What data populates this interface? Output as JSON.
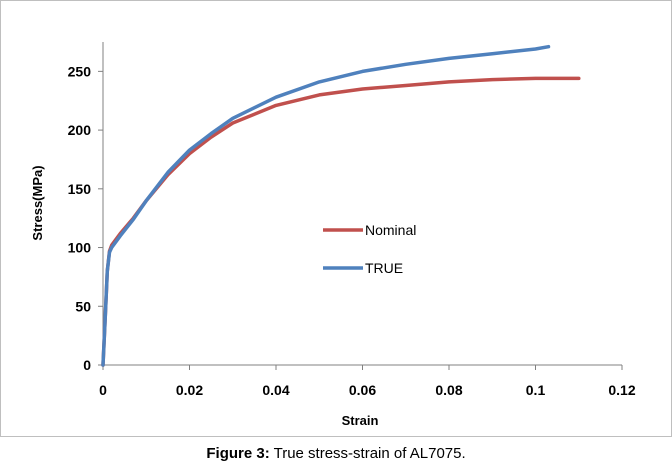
{
  "caption": {
    "label": "Figure 3:",
    "text": " True stress-strain of AL7075."
  },
  "chart_data": {
    "type": "line",
    "xlabel": "Strain",
    "ylabel": "Stress(MPa)",
    "xlim": [
      0,
      0.12
    ],
    "ylim": [
      0,
      275
    ],
    "xticks": [
      0,
      0.02,
      0.04,
      0.06,
      0.08,
      0.1,
      0.12
    ],
    "xtick_labels": [
      "0",
      "0.02",
      "0.04",
      "0.06",
      "0.08",
      "0.1",
      "0.12"
    ],
    "yticks": [
      0,
      50,
      100,
      150,
      200,
      250
    ],
    "ytick_labels": [
      "0",
      "50",
      "100",
      "150",
      "200",
      "250"
    ],
    "grid": false,
    "legend_position": "center-right",
    "series": [
      {
        "name": "Nominal",
        "color": "#c0504d",
        "x": [
          0,
          0.0005,
          0.001,
          0.0015,
          0.002,
          0.004,
          0.007,
          0.01,
          0.015,
          0.02,
          0.025,
          0.03,
          0.04,
          0.05,
          0.06,
          0.07,
          0.08,
          0.09,
          0.1,
          0.11
        ],
        "y": [
          0,
          40,
          80,
          97,
          102,
          112,
          125,
          140,
          162,
          180,
          194,
          206,
          221,
          230,
          235,
          238,
          241,
          243,
          244,
          244
        ]
      },
      {
        "name": "TRUE",
        "color": "#4f81bd",
        "x": [
          0,
          0.0005,
          0.001,
          0.0015,
          0.002,
          0.004,
          0.007,
          0.01,
          0.015,
          0.02,
          0.025,
          0.03,
          0.04,
          0.05,
          0.06,
          0.07,
          0.08,
          0.09,
          0.1,
          0.103
        ],
        "y": [
          0,
          40,
          80,
          96,
          100,
          110,
          124,
          140,
          164,
          183,
          197,
          210,
          228,
          241,
          250,
          256,
          261,
          265,
          269,
          271
        ]
      }
    ]
  }
}
